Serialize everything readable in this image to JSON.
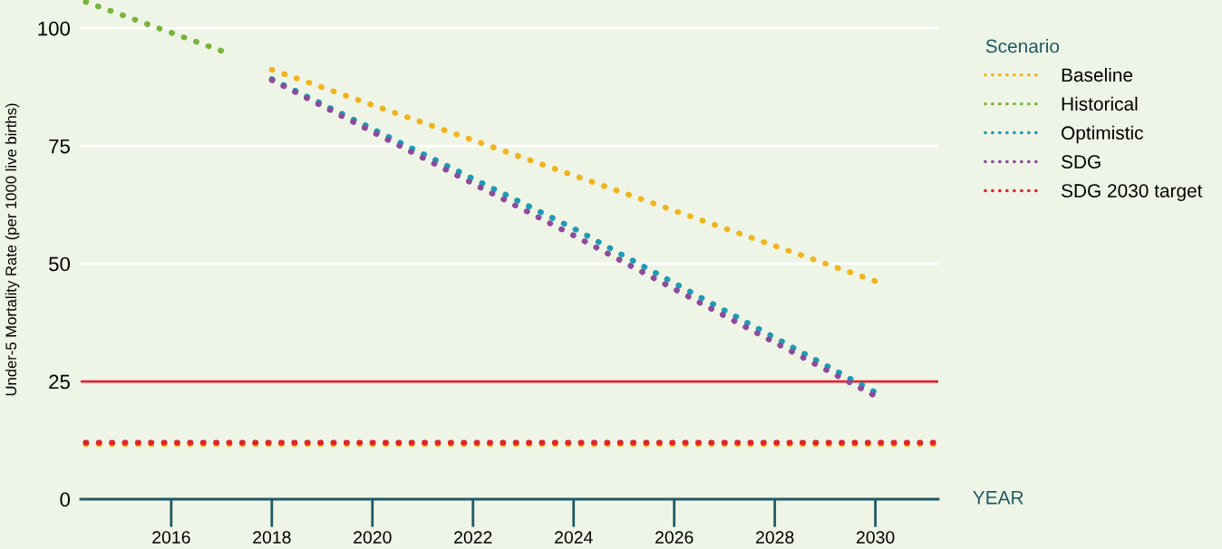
{
  "chart_data": {
    "type": "line",
    "xlabel": "YEAR",
    "ylabel": "Under-5 Mortality Rate (per 1000 live births)",
    "legend_title": "Scenario",
    "series": [
      {
        "name": "Baseline",
        "color": "#f0b41e",
        "x": [
          2018,
          2030
        ],
        "values": [
          91.2,
          46.3
        ]
      },
      {
        "name": "Historical",
        "color": "#78b43c",
        "x": [
          2014.3,
          2017
        ],
        "values": [
          105.6,
          95.2
        ]
      },
      {
        "name": "Optimistic",
        "color": "#1e9bb4",
        "x": [
          2018,
          2024,
          2030
        ],
        "values": [
          89.2,
          57.5,
          22.7
        ]
      },
      {
        "name": "SDG",
        "color": "#8c4b9b",
        "x": [
          2018,
          2024,
          2030
        ],
        "values": [
          89,
          56,
          21.9
        ]
      },
      {
        "color": "#f0b41e",
        "x": [
          2014.3,
          2031.2
        ],
        "values": [
          11.7,
          11.7
        ]
      },
      {
        "name": "SDG 2030 target",
        "color": "#e1232d",
        "x": [
          2014.3,
          2031.2
        ],
        "values": [
          12,
          12
        ]
      }
    ],
    "xlim": [
      2014.2,
      2031.25
    ],
    "xticks": [
      2016,
      2018,
      2020,
      2022,
      2024,
      2026,
      2028,
      2030
    ],
    "ylim": [
      0,
      106
    ],
    "yticks": [
      0,
      25,
      50,
      75,
      100
    ],
    "ref_lines": [
      {
        "axis": "y",
        "value": 25,
        "color": "#e1232d",
        "line_style": "solid"
      }
    ],
    "grid": "y",
    "legend": "top right",
    "line_style": "dotted",
    "marker": "none"
  }
}
